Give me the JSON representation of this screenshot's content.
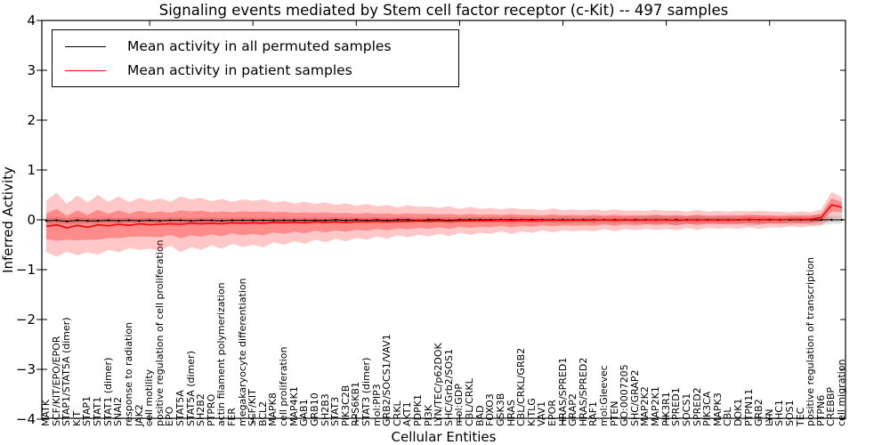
{
  "chart_data": {
    "type": "line",
    "title": "Signaling events mediated by Stem cell factor receptor (c-Kit) -- 497 samples",
    "xlabel": "Cellular Entities",
    "ylabel": "Inferred Activity",
    "ylim": [
      -4,
      4
    ],
    "yticks": [
      "4",
      "3",
      "2",
      "1",
      "0",
      "−1",
      "−2",
      "−3",
      "−4"
    ],
    "ytick_values": [
      4,
      3,
      2,
      1,
      0,
      -1,
      -2,
      -3,
      -4
    ],
    "x_major_tick_indices": [
      10,
      20,
      30,
      40,
      50,
      60,
      70
    ],
    "grid": false,
    "legend_position": "upper left",
    "band_note": "shaded bands show mean ± 1 std (inner) and ± 2 std (outer)",
    "categories": [
      "MATK",
      "SCF/KIT/EPO/EPOR",
      "STAP1/STAT5A (dimer)",
      "KIT",
      "STAP1",
      "STAT1",
      "STAT1 (dimer)",
      "SNAI2",
      "response to radiation",
      "JAK2",
      "cell motility",
      "positive regulation of cell proliferation",
      "EPO",
      "STAT5A",
      "STAT5A (dimer)",
      "SH2B2",
      "PTPRO",
      "actin filament polymerization",
      "FER",
      "megakaryocyte differentiation",
      "SCF/KIT",
      "BCL2",
      "MAPK8",
      "cell proliferation",
      "MAP4K1",
      "GAB1",
      "GRB10",
      "SH2B3",
      "STAT3",
      "PIK3C2B",
      "RPS6KB1",
      "STAT3 (dimer)",
      "mol:PIP3",
      "GRB2/SOCS1/VAV1",
      "CRKL",
      "AKT1",
      "PDPK1",
      "PI3K",
      "LYN/TEC/p62DOK",
      "SHC/Grb2/SOS1",
      "mol:GDP",
      "CBL/CRKL",
      "BAD",
      "FOXO3",
      "GSK3B",
      "HRAS",
      "CBL/CRKL/GRB2",
      "KITLG",
      "VAV1",
      "EPOR",
      "HRAS/SPRED1",
      "GRAP2",
      "HRAS/SPRED2",
      "RAF1",
      "mol:Gleevec",
      "PTEN",
      "GO:0007205",
      "SHC/GRAP2",
      "MAP2K2",
      "MAP2K1",
      "PIK3R1",
      "SPRED1",
      "SOCS1",
      "SPRED2",
      "PIK3CA",
      "MAPK3",
      "CBL",
      "DOK1",
      "PTPN11",
      "GRB2",
      "LYN",
      "SHC1",
      "SOS1",
      "TEC",
      "positive regulation of transcription",
      "PTPN6",
      "CREBBP",
      "cell migration"
    ],
    "series": [
      {
        "name": "Mean activity in all permuted samples",
        "color": "#000000",
        "values": [
          -0.02,
          -0.01,
          -0.03,
          -0.01,
          -0.02,
          -0.02,
          -0.01,
          -0.02,
          -0.01,
          -0.02,
          -0.01,
          -0.02,
          -0.01,
          -0.01,
          -0.02,
          -0.01,
          -0.01,
          -0.02,
          -0.01,
          -0.01,
          -0.01,
          -0.01,
          -0.01,
          -0.01,
          -0.01,
          -0.01,
          -0.01,
          -0.01,
          0.0,
          -0.01,
          0.0,
          -0.01,
          0.0,
          -0.01,
          0.0,
          0.0,
          -0.01,
          0.0,
          0.0,
          -0.01,
          0.0,
          0.0,
          0.0,
          0.0,
          0.0,
          0.0,
          0.0,
          0.0,
          0.0,
          0.0,
          0.0,
          0.0,
          0.0,
          0.0,
          0.0,
          0.0,
          0.0,
          0.0,
          0.0,
          0.0,
          0.0,
          0.0,
          0.0,
          0.0,
          0.0,
          0.0,
          0.0,
          0.0,
          0.0,
          0.0,
          0.0,
          0.0,
          0.0,
          0.0,
          0.0,
          0.0,
          0.0,
          0.0
        ],
        "std": [
          0.04,
          0.04,
          0.03,
          0.04,
          0.03,
          0.03,
          0.03,
          0.03,
          0.03,
          0.03,
          0.03,
          0.03,
          0.03,
          0.03,
          0.03,
          0.03,
          0.03,
          0.03,
          0.03,
          0.03,
          0.03,
          0.03,
          0.03,
          0.03,
          0.03,
          0.03,
          0.03,
          0.03,
          0.03,
          0.03,
          0.03,
          0.03,
          0.03,
          0.03,
          0.03,
          0.03,
          0.03,
          0.03,
          0.03,
          0.03,
          0.03,
          0.03,
          0.03,
          0.03,
          0.03,
          0.04,
          0.03,
          0.03,
          0.03,
          0.03,
          0.04,
          0.03,
          0.03,
          0.04,
          0.03,
          0.04,
          0.03,
          0.04,
          0.04,
          0.05,
          0.04,
          0.05,
          0.04,
          0.05,
          0.04,
          0.04,
          0.05,
          0.04,
          0.06,
          0.05,
          0.04,
          0.04,
          0.05,
          0.04,
          0.05,
          0.05,
          0.04,
          0.04
        ]
      },
      {
        "name": "Mean activity in patient samples",
        "color": "#ff0000",
        "values": [
          -0.13,
          -0.1,
          -0.16,
          -0.11,
          -0.15,
          -0.1,
          -0.12,
          -0.09,
          -0.11,
          -0.08,
          -0.1,
          -0.09,
          -0.08,
          -0.09,
          -0.07,
          -0.08,
          -0.07,
          -0.08,
          -0.06,
          -0.07,
          -0.06,
          -0.07,
          -0.05,
          -0.06,
          -0.05,
          -0.06,
          -0.04,
          -0.05,
          -0.04,
          -0.05,
          -0.04,
          -0.04,
          -0.03,
          -0.04,
          -0.03,
          -0.03,
          -0.02,
          -0.03,
          -0.02,
          -0.03,
          -0.02,
          -0.02,
          -0.02,
          -0.02,
          -0.01,
          -0.02,
          -0.01,
          -0.02,
          -0.01,
          -0.01,
          -0.01,
          -0.01,
          -0.01,
          -0.01,
          0.0,
          -0.01,
          0.0,
          -0.01,
          0.0,
          0.0,
          0.0,
          -0.01,
          0.0,
          0.0,
          0.0,
          0.0,
          0.0,
          0.0,
          0.01,
          0.0,
          0.01,
          0.0,
          0.01,
          0.01,
          0.01,
          0.05,
          0.3,
          0.25
        ],
        "std": [
          0.26,
          0.32,
          0.24,
          0.3,
          0.25,
          0.3,
          0.24,
          0.28,
          0.23,
          0.26,
          0.24,
          0.26,
          0.22,
          0.28,
          0.24,
          0.26,
          0.22,
          0.25,
          0.21,
          0.24,
          0.22,
          0.24,
          0.2,
          0.22,
          0.19,
          0.21,
          0.18,
          0.2,
          0.17,
          0.19,
          0.16,
          0.18,
          0.15,
          0.17,
          0.14,
          0.16,
          0.14,
          0.15,
          0.13,
          0.15,
          0.12,
          0.14,
          0.12,
          0.13,
          0.11,
          0.13,
          0.11,
          0.12,
          0.1,
          0.12,
          0.1,
          0.11,
          0.1,
          0.11,
          0.09,
          0.11,
          0.09,
          0.1,
          0.09,
          0.1,
          0.09,
          0.1,
          0.08,
          0.1,
          0.08,
          0.09,
          0.08,
          0.09,
          0.08,
          0.09,
          0.08,
          0.08,
          0.07,
          0.08,
          0.07,
          0.08,
          0.13,
          0.1
        ]
      }
    ]
  }
}
